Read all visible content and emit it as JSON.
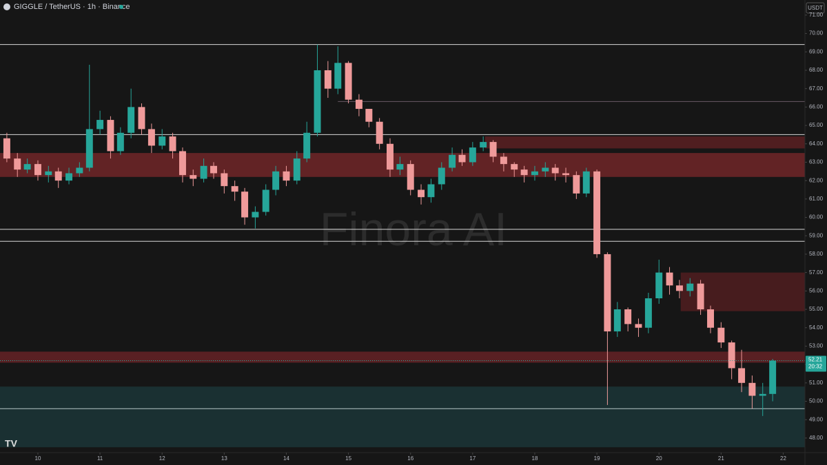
{
  "chart_data": {
    "type": "candlestick",
    "title": "GIGGLE / TetherUS · 1h · Binance",
    "currency": "USDT",
    "watermark": "Finora AI",
    "countdown": "20:32",
    "last_price": 52.21,
    "up_color": "#26a69a",
    "down_color": "#ef9a9a",
    "xlim": [
      9.39,
      22.35
    ],
    "xticks": [
      10,
      11,
      12,
      13,
      14,
      15,
      16,
      17,
      18,
      19,
      20,
      21,
      22
    ],
    "ylim": [
      47.21,
      71.82
    ],
    "yticks": [
      {
        "value": 48,
        "label": "48.00"
      },
      {
        "value": 49,
        "label": "49.00"
      },
      {
        "value": 50,
        "label": "50.00"
      },
      {
        "value": 51,
        "label": "51.00"
      },
      {
        "value": 52,
        "label": "52.00"
      },
      {
        "value": 53,
        "label": "53.00"
      },
      {
        "value": 54,
        "label": "54.00"
      },
      {
        "value": 55,
        "label": "55.00"
      },
      {
        "value": 56,
        "label": "56.00"
      },
      {
        "value": 57,
        "label": "57.00"
      },
      {
        "value": 58,
        "label": "58.00"
      },
      {
        "value": 59,
        "label": "59.00"
      },
      {
        "value": 60,
        "label": "60.00"
      },
      {
        "value": 61,
        "label": "61.00"
      },
      {
        "value": 62,
        "label": "62.00"
      },
      {
        "value": 63,
        "label": "63.00"
      },
      {
        "value": 64,
        "label": "64.00"
      },
      {
        "value": 65,
        "label": "65.00"
      },
      {
        "value": 66,
        "label": "66.00"
      },
      {
        "value": 67,
        "label": "67.00"
      },
      {
        "value": 68,
        "label": "68.00"
      },
      {
        "value": 69,
        "label": "69.00"
      },
      {
        "value": 70,
        "label": "70.00"
      },
      {
        "value": 71,
        "label": "71.00"
      }
    ],
    "levels": [
      {
        "value": 69.4,
        "color": "#d8d8d8"
      },
      {
        "value": 66.3,
        "from": 14.83,
        "color": "#6b5a66"
      },
      {
        "value": 64.5,
        "color": "#d8d8d8"
      },
      {
        "value": 59.35,
        "color": "#d8d8d8"
      },
      {
        "value": 58.7,
        "color": "#d8d8d8"
      },
      {
        "value": 49.6,
        "color": "#b8c8c8"
      }
    ],
    "zones": [
      {
        "range": [
          62.2,
          63.5
        ],
        "color": "rgba(190,50,55,0.45)"
      },
      {
        "range": [
          63.75,
          64.4
        ],
        "from": 17.2,
        "color": "rgba(150,40,45,0.45)"
      },
      {
        "range": [
          54.9,
          57.0
        ],
        "from": 20.35,
        "color": "rgba(130,35,40,0.45)"
      },
      {
        "range": [
          52.1,
          52.7
        ],
        "color": "rgba(170,45,50,0.45)"
      },
      {
        "range": [
          47.5,
          50.8
        ],
        "color": "rgba(30,80,85,0.45)"
      }
    ],
    "x": [
      9.5,
      9.67,
      9.83,
      10,
      10.17,
      10.33,
      10.5,
      10.67,
      10.83,
      11,
      11.17,
      11.33,
      11.5,
      11.67,
      11.83,
      12,
      12.17,
      12.33,
      12.5,
      12.67,
      12.83,
      13,
      13.17,
      13.33,
      13.5,
      13.67,
      13.83,
      14,
      14.17,
      14.33,
      14.5,
      14.67,
      14.83,
      15,
      15.17,
      15.33,
      15.5,
      15.67,
      15.83,
      16,
      16.17,
      16.33,
      16.5,
      16.67,
      16.83,
      17,
      17.17,
      17.33,
      17.5,
      17.67,
      17.83,
      18,
      18.17,
      18.33,
      18.5,
      18.67,
      18.83,
      19,
      19.17,
      19.33,
      19.5,
      19.67,
      19.83,
      20,
      20.17,
      20.33,
      20.5,
      20.67,
      20.83,
      21,
      21.17,
      21.33,
      21.5,
      21.67,
      21.83
    ],
    "open": [
      64.3,
      63.2,
      62.6,
      62.9,
      62.3,
      62.5,
      62.0,
      62.4,
      62.7,
      64.8,
      65.3,
      63.6,
      64.6,
      66.0,
      64.8,
      63.9,
      64.4,
      63.6,
      62.3,
      62.1,
      62.8,
      62.4,
      61.7,
      61.4,
      60.0,
      60.3,
      61.5,
      62.5,
      62.0,
      63.2,
      64.6,
      68.0,
      67.0,
      68.4,
      66.4,
      65.9,
      65.2,
      64.0,
      62.6,
      62.9,
      61.5,
      61.1,
      61.8,
      62.7,
      63.4,
      63.0,
      63.8,
      64.1,
      63.3,
      62.9,
      62.6,
      62.3,
      62.5,
      62.7,
      62.4,
      62.3,
      61.3,
      62.5,
      58.0,
      53.8,
      55.0,
      54.2,
      54.0,
      55.6,
      57.0,
      56.3,
      56.0,
      56.4,
      55.0,
      54.0,
      53.2,
      51.8,
      51.0,
      50.3,
      50.4
    ],
    "high": [
      64.6,
      63.5,
      63.2,
      63.1,
      62.8,
      62.7,
      62.7,
      63.0,
      68.3,
      65.8,
      65.5,
      64.9,
      67.0,
      66.2,
      65.1,
      64.8,
      64.6,
      63.8,
      62.6,
      63.2,
      63.0,
      62.6,
      62.0,
      61.6,
      60.6,
      61.8,
      62.8,
      62.8,
      63.6,
      65.2,
      69.4,
      68.5,
      69.3,
      68.5,
      66.7,
      65.8,
      65.4,
      64.3,
      63.3,
      63.1,
      61.8,
      62.1,
      63.0,
      63.8,
      63.7,
      64.1,
      64.4,
      64.2,
      63.5,
      63.0,
      62.8,
      62.8,
      63.0,
      62.9,
      62.7,
      62.5,
      62.7,
      62.6,
      58.1,
      55.4,
      55.1,
      54.5,
      55.9,
      57.7,
      57.3,
      56.6,
      56.7,
      56.6,
      55.2,
      54.3,
      53.3,
      52.8,
      51.4,
      51.0,
      52.3
    ],
    "low": [
      63.0,
      62.2,
      62.4,
      62.0,
      61.9,
      61.6,
      61.8,
      62.2,
      62.5,
      64.5,
      63.2,
      63.4,
      64.3,
      64.5,
      63.5,
      63.7,
      63.2,
      61.9,
      61.7,
      61.9,
      62.1,
      61.3,
      60.9,
      59.6,
      59.4,
      60.1,
      61.2,
      61.7,
      61.8,
      63.0,
      64.4,
      66.5,
      66.7,
      66.2,
      65.5,
      64.9,
      63.7,
      62.2,
      62.3,
      61.2,
      60.7,
      60.8,
      61.5,
      62.5,
      62.8,
      62.8,
      63.6,
      63.0,
      62.5,
      62.2,
      61.9,
      62.0,
      62.2,
      62.0,
      61.9,
      61.0,
      61.1,
      57.8,
      49.8,
      53.5,
      53.8,
      53.5,
      53.7,
      55.3,
      55.8,
      55.6,
      55.7,
      54.7,
      53.7,
      52.9,
      51.2,
      50.5,
      49.6,
      49.2,
      50.0
    ],
    "close": [
      63.2,
      62.6,
      62.9,
      62.3,
      62.5,
      62.0,
      62.4,
      62.7,
      64.8,
      65.3,
      63.6,
      64.6,
      66.0,
      64.8,
      63.9,
      64.4,
      63.6,
      62.3,
      62.1,
      62.8,
      62.4,
      61.7,
      61.4,
      60.0,
      60.3,
      61.5,
      62.5,
      62.0,
      63.2,
      64.6,
      68.0,
      67.0,
      68.4,
      66.4,
      65.9,
      65.2,
      64.0,
      62.6,
      62.9,
      61.5,
      61.1,
      61.8,
      62.7,
      63.4,
      63.0,
      63.8,
      64.1,
      63.3,
      62.9,
      62.6,
      62.3,
      62.5,
      62.7,
      62.4,
      62.3,
      61.3,
      62.5,
      58.0,
      53.8,
      55.0,
      54.2,
      54.0,
      55.6,
      57.0,
      56.3,
      56.0,
      56.4,
      55.0,
      54.0,
      53.2,
      51.8,
      51.0,
      50.3,
      50.4,
      52.21
    ]
  }
}
